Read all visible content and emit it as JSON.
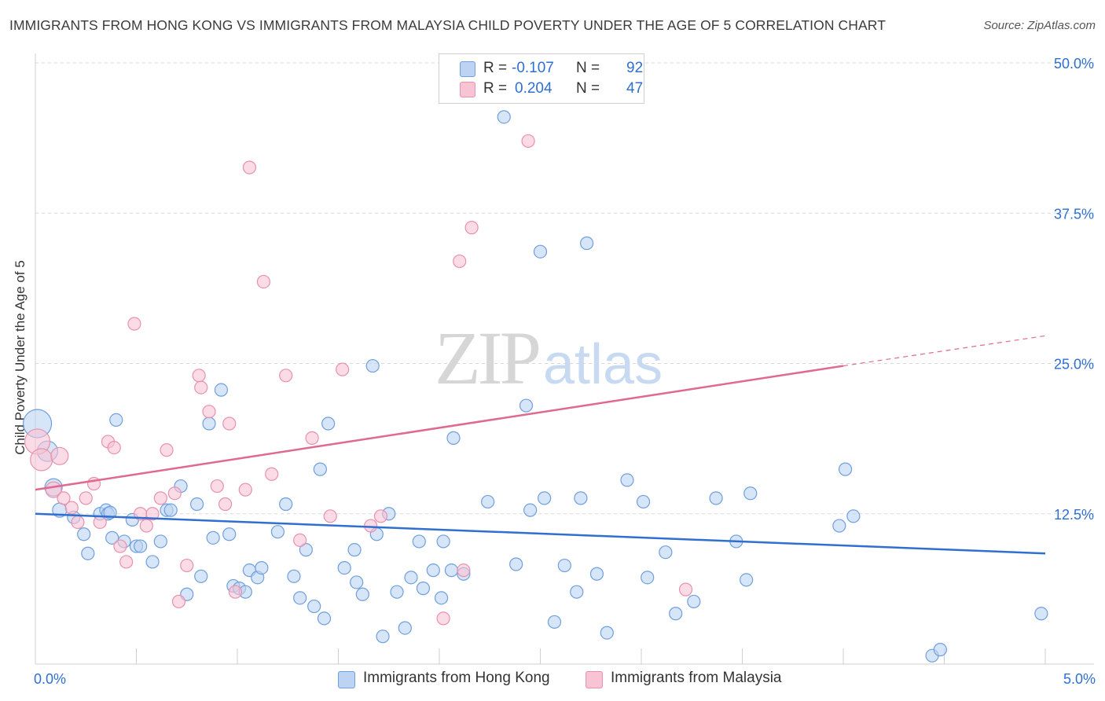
{
  "chart_data": {
    "type": "scatter",
    "title": "IMMIGRANTS FROM HONG KONG VS IMMIGRANTS FROM MALAYSIA CHILD POVERTY UNDER THE AGE OF 5 CORRELATION CHART",
    "source": "Source: ZipAtlas.com",
    "xlabel": "",
    "ylabel": "Child Poverty Under the Age of 5",
    "xlim": [
      0,
      5
    ],
    "ylim": [
      0,
      50
    ],
    "x_tick_labels": [
      "0.0%",
      "5.0%"
    ],
    "y_tick_labels": [
      "12.5%",
      "25.0%",
      "37.5%",
      "50.0%"
    ],
    "watermark": {
      "zip": "ZIP",
      "atlas": "atlas"
    },
    "colors": {
      "hong_kong_fill": "#bcd3f3",
      "hong_kong_edge": "#6f9fdc",
      "hong_kong_line": "#2f6fd0",
      "malaysia_fill": "#f8c3d3",
      "malaysia_edge": "#e891ae",
      "malaysia_line": "#e0698f",
      "value_text": "#2f6fd0",
      "grid": "#d8d8d8"
    },
    "legend": {
      "rows": [
        {
          "r_label": "R =",
          "r_value": "-0.107",
          "n_label": "N =",
          "n_value": "92"
        },
        {
          "r_label": "R =",
          "r_value": "0.204",
          "n_label": "N =",
          "n_value": "47"
        }
      ]
    },
    "series": [
      {
        "name": "Immigrants from Hong Kong",
        "trend": {
          "x": [
            0.0,
            5.0
          ],
          "y": [
            12.5,
            9.2
          ]
        },
        "points": [
          {
            "x": 0.01,
            "y": 20.0,
            "s": 18
          },
          {
            "x": 0.06,
            "y": 17.7,
            "s": 13
          },
          {
            "x": 0.09,
            "y": 14.7,
            "s": 11
          },
          {
            "x": 0.12,
            "y": 12.8,
            "s": 9
          },
          {
            "x": 0.19,
            "y": 12.2,
            "s": 8
          },
          {
            "x": 0.24,
            "y": 10.8,
            "s": 8
          },
          {
            "x": 0.26,
            "y": 9.2,
            "s": 8
          },
          {
            "x": 0.32,
            "y": 12.5,
            "s": 8
          },
          {
            "x": 0.35,
            "y": 12.8,
            "s": 8
          },
          {
            "x": 0.36,
            "y": 12.5,
            "s": 8
          },
          {
            "x": 0.37,
            "y": 12.6,
            "s": 8
          },
          {
            "x": 0.38,
            "y": 10.5,
            "s": 8
          },
          {
            "x": 0.4,
            "y": 20.3,
            "s": 8
          },
          {
            "x": 0.44,
            "y": 10.2,
            "s": 8
          },
          {
            "x": 0.48,
            "y": 12.0,
            "s": 8
          },
          {
            "x": 0.5,
            "y": 9.8,
            "s": 8
          },
          {
            "x": 0.52,
            "y": 9.8,
            "s": 8
          },
          {
            "x": 0.58,
            "y": 8.5,
            "s": 8
          },
          {
            "x": 0.65,
            "y": 12.8,
            "s": 8
          },
          {
            "x": 0.62,
            "y": 10.2,
            "s": 8
          },
          {
            "x": 0.67,
            "y": 12.8,
            "s": 8
          },
          {
            "x": 0.72,
            "y": 14.8,
            "s": 8
          },
          {
            "x": 0.75,
            "y": 5.8,
            "s": 8
          },
          {
            "x": 0.8,
            "y": 13.3,
            "s": 8
          },
          {
            "x": 0.82,
            "y": 7.3,
            "s": 8
          },
          {
            "x": 0.86,
            "y": 20.0,
            "s": 8
          },
          {
            "x": 0.88,
            "y": 10.5,
            "s": 8
          },
          {
            "x": 0.92,
            "y": 22.8,
            "s": 8
          },
          {
            "x": 0.96,
            "y": 10.8,
            "s": 8
          },
          {
            "x": 0.98,
            "y": 6.5,
            "s": 8
          },
          {
            "x": 1.01,
            "y": 6.3,
            "s": 8
          },
          {
            "x": 1.04,
            "y": 6.0,
            "s": 8
          },
          {
            "x": 1.06,
            "y": 7.8,
            "s": 8
          },
          {
            "x": 1.1,
            "y": 7.2,
            "s": 8
          },
          {
            "x": 1.12,
            "y": 8.0,
            "s": 8
          },
          {
            "x": 1.2,
            "y": 11.0,
            "s": 8
          },
          {
            "x": 1.24,
            "y": 13.3,
            "s": 8
          },
          {
            "x": 1.28,
            "y": 7.3,
            "s": 8
          },
          {
            "x": 1.31,
            "y": 5.5,
            "s": 8
          },
          {
            "x": 1.34,
            "y": 9.5,
            "s": 8
          },
          {
            "x": 1.38,
            "y": 4.8,
            "s": 8
          },
          {
            "x": 1.41,
            "y": 16.2,
            "s": 8
          },
          {
            "x": 1.43,
            "y": 3.8,
            "s": 8
          },
          {
            "x": 1.45,
            "y": 20.0,
            "s": 8
          },
          {
            "x": 1.53,
            "y": 8.0,
            "s": 8
          },
          {
            "x": 1.58,
            "y": 9.5,
            "s": 8
          },
          {
            "x": 1.59,
            "y": 6.8,
            "s": 8
          },
          {
            "x": 1.62,
            "y": 5.8,
            "s": 8
          },
          {
            "x": 1.67,
            "y": 24.8,
            "s": 8
          },
          {
            "x": 1.69,
            "y": 10.8,
            "s": 8
          },
          {
            "x": 1.72,
            "y": 2.3,
            "s": 8
          },
          {
            "x": 1.75,
            "y": 12.5,
            "s": 8
          },
          {
            "x": 1.79,
            "y": 6.0,
            "s": 8
          },
          {
            "x": 1.83,
            "y": 3.0,
            "s": 8
          },
          {
            "x": 1.86,
            "y": 7.2,
            "s": 8
          },
          {
            "x": 1.9,
            "y": 10.2,
            "s": 8
          },
          {
            "x": 1.92,
            "y": 6.3,
            "s": 8
          },
          {
            "x": 1.97,
            "y": 7.8,
            "s": 8
          },
          {
            "x": 2.01,
            "y": 5.5,
            "s": 8
          },
          {
            "x": 2.02,
            "y": 10.2,
            "s": 8
          },
          {
            "x": 2.06,
            "y": 7.8,
            "s": 8
          },
          {
            "x": 2.12,
            "y": 7.5,
            "s": 8
          },
          {
            "x": 2.07,
            "y": 18.8,
            "s": 8
          },
          {
            "x": 2.24,
            "y": 13.5,
            "s": 8
          },
          {
            "x": 2.32,
            "y": 45.5,
            "s": 8
          },
          {
            "x": 2.38,
            "y": 8.3,
            "s": 8
          },
          {
            "x": 2.43,
            "y": 21.5,
            "s": 8
          },
          {
            "x": 2.45,
            "y": 12.8,
            "s": 8
          },
          {
            "x": 2.5,
            "y": 34.3,
            "s": 8
          },
          {
            "x": 2.52,
            "y": 13.8,
            "s": 8
          },
          {
            "x": 2.57,
            "y": 3.5,
            "s": 8
          },
          {
            "x": 2.62,
            "y": 8.2,
            "s": 8
          },
          {
            "x": 2.68,
            "y": 6.0,
            "s": 8
          },
          {
            "x": 2.7,
            "y": 13.8,
            "s": 8
          },
          {
            "x": 2.73,
            "y": 35.0,
            "s": 8
          },
          {
            "x": 2.78,
            "y": 7.5,
            "s": 8
          },
          {
            "x": 2.83,
            "y": 2.6,
            "s": 8
          },
          {
            "x": 2.93,
            "y": 15.3,
            "s": 8
          },
          {
            "x": 3.01,
            "y": 13.5,
            "s": 8
          },
          {
            "x": 3.03,
            "y": 7.2,
            "s": 8
          },
          {
            "x": 3.12,
            "y": 9.3,
            "s": 8
          },
          {
            "x": 3.17,
            "y": 4.2,
            "s": 8
          },
          {
            "x": 3.26,
            "y": 5.2,
            "s": 8
          },
          {
            "x": 3.37,
            "y": 13.8,
            "s": 8
          },
          {
            "x": 3.47,
            "y": 10.2,
            "s": 8
          },
          {
            "x": 3.52,
            "y": 7.0,
            "s": 8
          },
          {
            "x": 3.54,
            "y": 14.2,
            "s": 8
          },
          {
            "x": 3.98,
            "y": 11.5,
            "s": 8
          },
          {
            "x": 4.01,
            "y": 16.2,
            "s": 8
          },
          {
            "x": 4.05,
            "y": 12.3,
            "s": 8
          },
          {
            "x": 4.44,
            "y": 0.7,
            "s": 8
          },
          {
            "x": 4.48,
            "y": 1.2,
            "s": 8
          },
          {
            "x": 4.98,
            "y": 4.2,
            "s": 8
          }
        ]
      },
      {
        "name": "Immigrants from Malaysia",
        "trend": {
          "x": [
            0.0,
            4.0
          ],
          "y": [
            14.5,
            24.8
          ]
        },
        "trend_dashed": {
          "x": [
            4.0,
            5.0
          ],
          "y": [
            24.8,
            27.3
          ]
        },
        "points": [
          {
            "x": 0.01,
            "y": 18.5,
            "s": 16
          },
          {
            "x": 0.03,
            "y": 17.0,
            "s": 14
          },
          {
            "x": 0.12,
            "y": 17.3,
            "s": 11
          },
          {
            "x": 0.09,
            "y": 14.5,
            "s": 10
          },
          {
            "x": 0.14,
            "y": 13.8,
            "s": 8
          },
          {
            "x": 0.18,
            "y": 13.0,
            "s": 8
          },
          {
            "x": 0.21,
            "y": 11.8,
            "s": 8
          },
          {
            "x": 0.25,
            "y": 13.8,
            "s": 8
          },
          {
            "x": 0.29,
            "y": 15.0,
            "s": 8
          },
          {
            "x": 0.32,
            "y": 11.8,
            "s": 8
          },
          {
            "x": 0.36,
            "y": 18.5,
            "s": 8
          },
          {
            "x": 0.39,
            "y": 18.0,
            "s": 8
          },
          {
            "x": 0.42,
            "y": 9.8,
            "s": 8
          },
          {
            "x": 0.45,
            "y": 8.5,
            "s": 8
          },
          {
            "x": 0.49,
            "y": 28.3,
            "s": 8
          },
          {
            "x": 0.52,
            "y": 12.5,
            "s": 8
          },
          {
            "x": 0.55,
            "y": 11.5,
            "s": 8
          },
          {
            "x": 0.58,
            "y": 12.5,
            "s": 8
          },
          {
            "x": 0.62,
            "y": 13.8,
            "s": 8
          },
          {
            "x": 0.65,
            "y": 17.8,
            "s": 8
          },
          {
            "x": 0.69,
            "y": 14.2,
            "s": 8
          },
          {
            "x": 0.71,
            "y": 5.2,
            "s": 8
          },
          {
            "x": 0.75,
            "y": 8.2,
            "s": 8
          },
          {
            "x": 0.81,
            "y": 24.0,
            "s": 8
          },
          {
            "x": 0.82,
            "y": 23.0,
            "s": 8
          },
          {
            "x": 0.86,
            "y": 21.0,
            "s": 8
          },
          {
            "x": 0.9,
            "y": 14.8,
            "s": 8
          },
          {
            "x": 0.94,
            "y": 13.3,
            "s": 8
          },
          {
            "x": 0.96,
            "y": 20.0,
            "s": 8
          },
          {
            "x": 0.99,
            "y": 6.0,
            "s": 8
          },
          {
            "x": 1.04,
            "y": 14.5,
            "s": 8
          },
          {
            "x": 1.06,
            "y": 41.3,
            "s": 8
          },
          {
            "x": 1.13,
            "y": 31.8,
            "s": 8
          },
          {
            "x": 1.17,
            "y": 15.8,
            "s": 8
          },
          {
            "x": 1.24,
            "y": 24.0,
            "s": 8
          },
          {
            "x": 1.31,
            "y": 10.3,
            "s": 8
          },
          {
            "x": 1.37,
            "y": 18.8,
            "s": 8
          },
          {
            "x": 1.46,
            "y": 12.3,
            "s": 8
          },
          {
            "x": 1.52,
            "y": 24.5,
            "s": 8
          },
          {
            "x": 1.66,
            "y": 11.5,
            "s": 8
          },
          {
            "x": 1.71,
            "y": 12.3,
            "s": 8
          },
          {
            "x": 2.02,
            "y": 3.8,
            "s": 8
          },
          {
            "x": 2.1,
            "y": 33.5,
            "s": 8
          },
          {
            "x": 2.12,
            "y": 7.8,
            "s": 8
          },
          {
            "x": 2.16,
            "y": 36.3,
            "s": 8
          },
          {
            "x": 2.44,
            "y": 43.5,
            "s": 8
          },
          {
            "x": 3.22,
            "y": 6.2,
            "s": 8
          }
        ]
      }
    ]
  }
}
